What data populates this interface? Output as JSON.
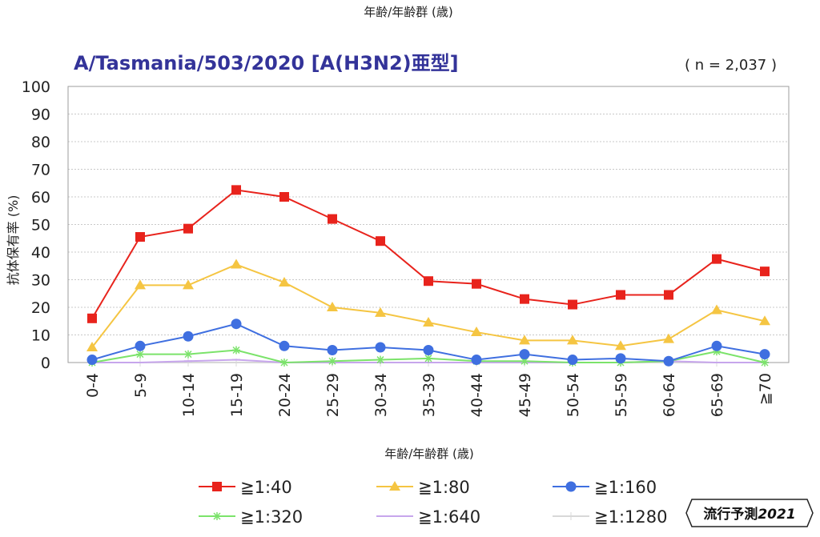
{
  "top_label": "年齢/年齢群 (歳)",
  "badge": {
    "text_prefix": "流行予測",
    "text_year": "2021"
  },
  "chart_data": {
    "type": "line",
    "title": "A/Tasmania/503/2020 [A(H3N2)亜型]",
    "n_label": "( n = 2,037 )",
    "xlabel": "年齢/年齢群 (歳)",
    "ylabel": "抗体保有率 (%)",
    "ylim": [
      0,
      100
    ],
    "yticks": [
      0,
      10,
      20,
      30,
      40,
      50,
      60,
      70,
      80,
      90,
      100
    ],
    "grid": true,
    "legend_position": "bottom",
    "categories": [
      "0-4",
      "5-9",
      "10-14",
      "15-19",
      "20-24",
      "25-29",
      "30-34",
      "35-39",
      "40-44",
      "45-49",
      "50-54",
      "55-59",
      "60-64",
      "65-69",
      "≧70"
    ],
    "series": [
      {
        "name": "≧1:40",
        "color": "#e8231c",
        "marker": "square",
        "values": [
          16,
          45.5,
          48.5,
          62.5,
          60,
          52,
          44,
          29.5,
          28.5,
          23,
          21,
          24.5,
          24.5,
          37.5,
          33
        ]
      },
      {
        "name": "≧1:80",
        "color": "#f5c542",
        "marker": "triangle",
        "values": [
          5.5,
          28,
          28,
          35.5,
          29,
          20,
          18,
          14.5,
          11,
          8,
          8,
          6,
          8.5,
          19,
          15
        ]
      },
      {
        "name": "≧1:160",
        "color": "#3f6fe0",
        "marker": "circle",
        "values": [
          1,
          6,
          9.5,
          14,
          6,
          4.5,
          5.5,
          4.5,
          1,
          3,
          1,
          1.5,
          0.5,
          6,
          3
        ]
      },
      {
        "name": "≧1:320",
        "color": "#7be36a",
        "marker": "star",
        "values": [
          0,
          3,
          3,
          4.5,
          0,
          0.5,
          1,
          1.5,
          0.5,
          0.5,
          0,
          0,
          0.5,
          4,
          0
        ]
      },
      {
        "name": "≧1:640",
        "color": "#c7a6ec",
        "marker": "dash",
        "values": [
          0,
          0,
          0.5,
          1,
          0,
          0,
          0,
          0,
          0,
          0,
          0,
          0,
          0.5,
          0,
          0
        ]
      },
      {
        "name": "≧1:1280",
        "color": "#d8d8d8",
        "marker": "plus",
        "values": [
          0,
          0,
          0,
          0,
          0,
          0,
          0,
          0,
          0,
          0,
          0,
          0,
          0,
          0,
          0
        ]
      }
    ]
  }
}
